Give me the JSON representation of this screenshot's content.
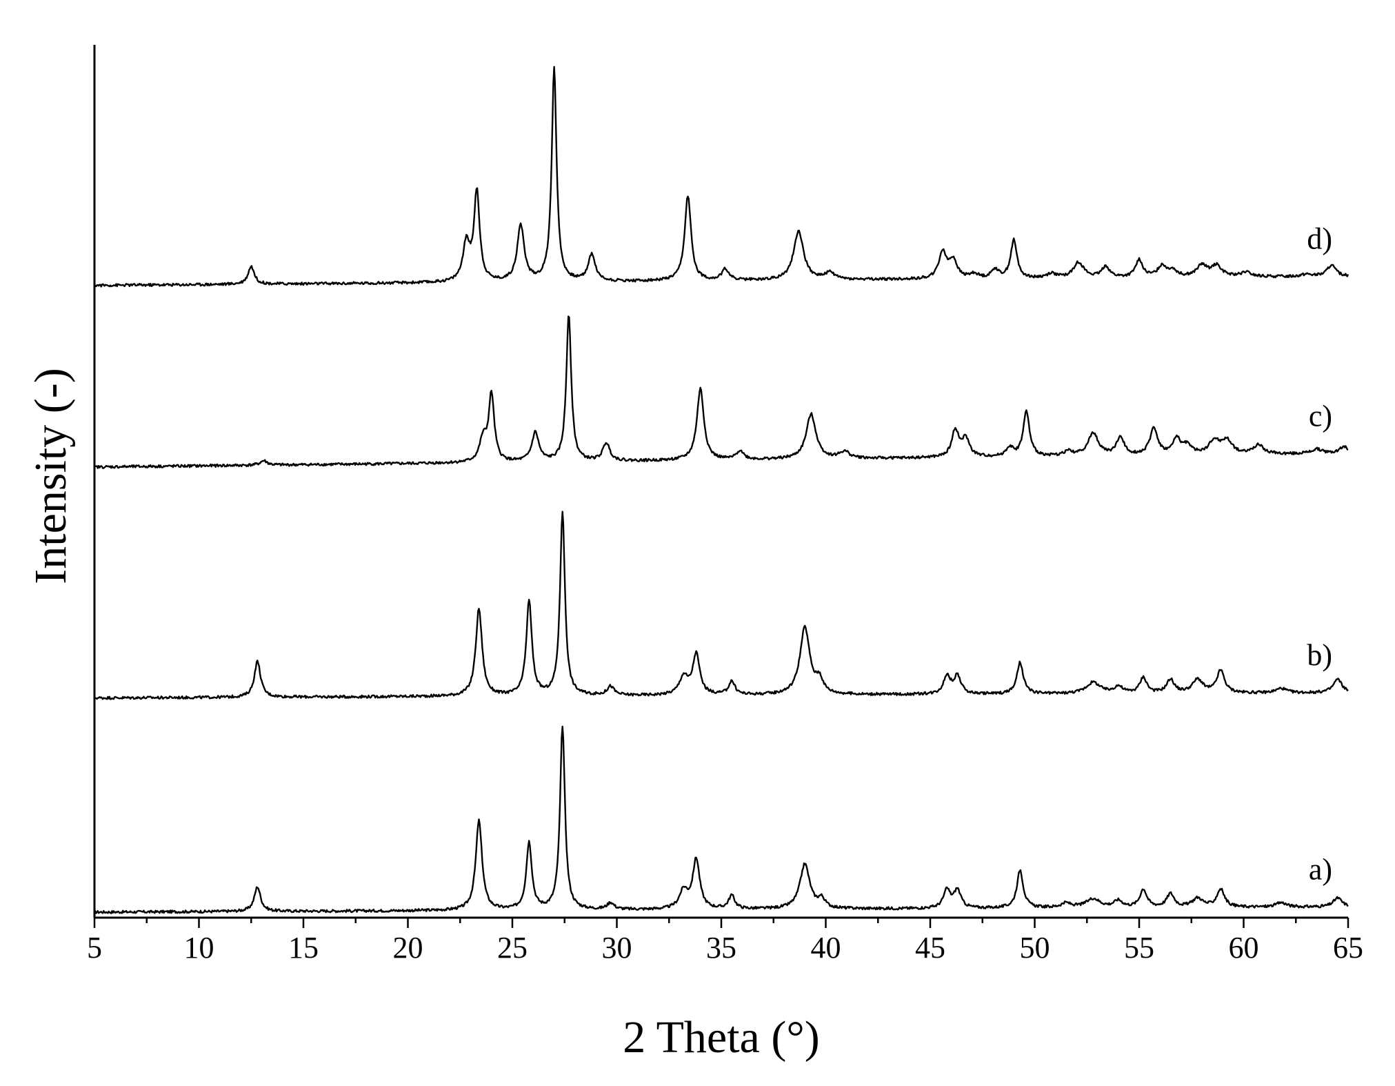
{
  "chart_data": {
    "type": "line",
    "title": "",
    "xlabel": "2 Theta (°)",
    "ylabel": "Intensity (-)",
    "xlim": [
      5,
      65
    ],
    "xticks": [
      5,
      10,
      15,
      20,
      25,
      30,
      35,
      40,
      45,
      50,
      55,
      60,
      65
    ],
    "x_tick_labels": [
      "5",
      "10",
      "15",
      "20",
      "25",
      "30",
      "35",
      "40",
      "45",
      "50",
      "55",
      "60",
      "65"
    ],
    "y_ticks_shown": false,
    "grid": false,
    "legend": "none",
    "stacked_offsets": true,
    "series": [
      {
        "name": "a)",
        "baseline": 0.0,
        "end_level": 0.023,
        "peaks": [
          {
            "x": 12.8,
            "h": 0.11,
            "w": 0.18
          },
          {
            "x": 23.4,
            "h": 0.4,
            "w": 0.18
          },
          {
            "x": 25.8,
            "h": 0.3,
            "w": 0.16
          },
          {
            "x": 27.4,
            "h": 0.82,
            "w": 0.14
          },
          {
            "x": 29.7,
            "h": 0.03,
            "w": 0.2
          },
          {
            "x": 33.2,
            "h": 0.08,
            "w": 0.25
          },
          {
            "x": 33.8,
            "h": 0.22,
            "w": 0.2
          },
          {
            "x": 35.5,
            "h": 0.06,
            "w": 0.18
          },
          {
            "x": 39.0,
            "h": 0.2,
            "w": 0.28
          },
          {
            "x": 39.8,
            "h": 0.04,
            "w": 0.2
          },
          {
            "x": 45.8,
            "h": 0.08,
            "w": 0.2
          },
          {
            "x": 46.3,
            "h": 0.08,
            "w": 0.2
          },
          {
            "x": 49.3,
            "h": 0.17,
            "w": 0.18
          },
          {
            "x": 51.5,
            "h": 0.02,
            "w": 0.3
          },
          {
            "x": 52.8,
            "h": 0.04,
            "w": 0.4
          },
          {
            "x": 54.0,
            "h": 0.03,
            "w": 0.25
          },
          {
            "x": 55.2,
            "h": 0.08,
            "w": 0.2
          },
          {
            "x": 56.5,
            "h": 0.06,
            "w": 0.22
          },
          {
            "x": 57.8,
            "h": 0.04,
            "w": 0.3
          },
          {
            "x": 58.9,
            "h": 0.08,
            "w": 0.22
          },
          {
            "x": 61.8,
            "h": 0.02,
            "w": 0.3
          },
          {
            "x": 64.5,
            "h": 0.04,
            "w": 0.25
          }
        ]
      },
      {
        "name": "b)",
        "baseline": 0.955,
        "end_level": 0.023,
        "peaks": [
          {
            "x": 12.8,
            "h": 0.16,
            "w": 0.18
          },
          {
            "x": 23.4,
            "h": 0.39,
            "w": 0.18
          },
          {
            "x": 25.8,
            "h": 0.42,
            "w": 0.16
          },
          {
            "x": 27.4,
            "h": 0.82,
            "w": 0.14
          },
          {
            "x": 29.7,
            "h": 0.04,
            "w": 0.2
          },
          {
            "x": 33.2,
            "h": 0.08,
            "w": 0.25
          },
          {
            "x": 33.8,
            "h": 0.18,
            "w": 0.2
          },
          {
            "x": 35.5,
            "h": 0.06,
            "w": 0.18
          },
          {
            "x": 39.0,
            "h": 0.3,
            "w": 0.28
          },
          {
            "x": 39.7,
            "h": 0.06,
            "w": 0.2
          },
          {
            "x": 45.8,
            "h": 0.08,
            "w": 0.2
          },
          {
            "x": 46.3,
            "h": 0.08,
            "w": 0.2
          },
          {
            "x": 49.3,
            "h": 0.14,
            "w": 0.18
          },
          {
            "x": 52.8,
            "h": 0.05,
            "w": 0.4
          },
          {
            "x": 54.0,
            "h": 0.03,
            "w": 0.25
          },
          {
            "x": 55.2,
            "h": 0.07,
            "w": 0.2
          },
          {
            "x": 56.5,
            "h": 0.06,
            "w": 0.22
          },
          {
            "x": 57.8,
            "h": 0.06,
            "w": 0.3
          },
          {
            "x": 58.9,
            "h": 0.1,
            "w": 0.22
          },
          {
            "x": 61.8,
            "h": 0.02,
            "w": 0.3
          },
          {
            "x": 64.5,
            "h": 0.06,
            "w": 0.25
          }
        ]
      },
      {
        "name": "c)",
        "baseline": 1.985,
        "end_level": 0.06,
        "peaks": [
          {
            "x": 13.1,
            "h": 0.02,
            "w": 0.2
          },
          {
            "x": 23.6,
            "h": 0.1,
            "w": 0.2
          },
          {
            "x": 24.0,
            "h": 0.3,
            "w": 0.16
          },
          {
            "x": 26.1,
            "h": 0.13,
            "w": 0.2
          },
          {
            "x": 27.7,
            "h": 0.66,
            "w": 0.14
          },
          {
            "x": 29.5,
            "h": 0.08,
            "w": 0.2
          },
          {
            "x": 34.0,
            "h": 0.32,
            "w": 0.2
          },
          {
            "x": 35.9,
            "h": 0.04,
            "w": 0.2
          },
          {
            "x": 39.3,
            "h": 0.2,
            "w": 0.28
          },
          {
            "x": 40.9,
            "h": 0.03,
            "w": 0.3
          },
          {
            "x": 46.2,
            "h": 0.12,
            "w": 0.2
          },
          {
            "x": 46.7,
            "h": 0.08,
            "w": 0.22
          },
          {
            "x": 48.8,
            "h": 0.04,
            "w": 0.2
          },
          {
            "x": 49.6,
            "h": 0.2,
            "w": 0.18
          },
          {
            "x": 51.6,
            "h": 0.02,
            "w": 0.25
          },
          {
            "x": 52.8,
            "h": 0.1,
            "w": 0.3
          },
          {
            "x": 54.1,
            "h": 0.08,
            "w": 0.22
          },
          {
            "x": 55.7,
            "h": 0.12,
            "w": 0.22
          },
          {
            "x": 56.8,
            "h": 0.07,
            "w": 0.22
          },
          {
            "x": 57.3,
            "h": 0.04,
            "w": 0.25
          },
          {
            "x": 58.6,
            "h": 0.06,
            "w": 0.3
          },
          {
            "x": 59.2,
            "h": 0.06,
            "w": 0.3
          },
          {
            "x": 60.7,
            "h": 0.04,
            "w": 0.3
          },
          {
            "x": 63.5,
            "h": 0.02,
            "w": 0.3
          },
          {
            "x": 64.8,
            "h": 0.03,
            "w": 0.25
          }
        ]
      },
      {
        "name": "d)",
        "baseline": 2.795,
        "end_level": 0.04,
        "peaks": [
          {
            "x": 12.5,
            "h": 0.08,
            "w": 0.18
          },
          {
            "x": 22.8,
            "h": 0.17,
            "w": 0.2
          },
          {
            "x": 23.3,
            "h": 0.4,
            "w": 0.16
          },
          {
            "x": 25.4,
            "h": 0.25,
            "w": 0.2
          },
          {
            "x": 27.0,
            "h": 0.95,
            "w": 0.14
          },
          {
            "x": 28.8,
            "h": 0.12,
            "w": 0.2
          },
          {
            "x": 33.4,
            "h": 0.38,
            "w": 0.18
          },
          {
            "x": 35.2,
            "h": 0.05,
            "w": 0.2
          },
          {
            "x": 38.7,
            "h": 0.22,
            "w": 0.28
          },
          {
            "x": 40.2,
            "h": 0.03,
            "w": 0.3
          },
          {
            "x": 45.6,
            "h": 0.12,
            "w": 0.22
          },
          {
            "x": 46.1,
            "h": 0.08,
            "w": 0.22
          },
          {
            "x": 47.1,
            "h": 0.02,
            "w": 0.25
          },
          {
            "x": 48.1,
            "h": 0.04,
            "w": 0.2
          },
          {
            "x": 49.0,
            "h": 0.17,
            "w": 0.18
          },
          {
            "x": 50.8,
            "h": 0.02,
            "w": 0.25
          },
          {
            "x": 52.1,
            "h": 0.07,
            "w": 0.3
          },
          {
            "x": 53.4,
            "h": 0.05,
            "w": 0.22
          },
          {
            "x": 55.0,
            "h": 0.08,
            "w": 0.2
          },
          {
            "x": 56.1,
            "h": 0.05,
            "w": 0.25
          },
          {
            "x": 56.6,
            "h": 0.03,
            "w": 0.25
          },
          {
            "x": 58.0,
            "h": 0.05,
            "w": 0.3
          },
          {
            "x": 58.7,
            "h": 0.05,
            "w": 0.3
          },
          {
            "x": 60.1,
            "h": 0.02,
            "w": 0.3
          },
          {
            "x": 63.0,
            "h": 0.01,
            "w": 0.3
          },
          {
            "x": 64.2,
            "h": 0.05,
            "w": 0.25
          }
        ]
      }
    ]
  }
}
